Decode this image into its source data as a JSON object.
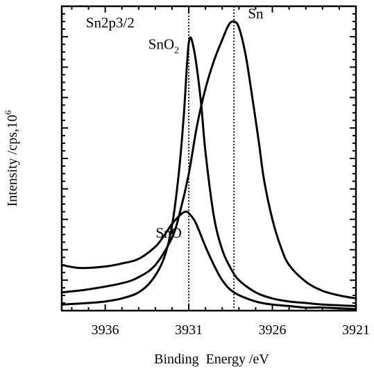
{
  "chart_data": {
    "type": "line",
    "title": "",
    "xlabel": "Binding  Energy /eV",
    "ylabel": "Intensity /cps,10",
    "ylabel_superscript": "6",
    "x_reversed": true,
    "xlim": [
      3938.6,
      3921
    ],
    "ylim": [
      0,
      100
    ],
    "x_ticks": [
      3936,
      3931,
      3926,
      3921
    ],
    "x_tick_labels": [
      "3936",
      "3931",
      "3926",
      "3921"
    ],
    "y_tick_labels_shown": false,
    "grid": false,
    "reference_lines_x": [
      3931.0,
      3928.3
    ],
    "annotations": [
      {
        "text": "Sn2p3/2",
        "x": 3935.7,
        "y": 93
      },
      {
        "text": "Sn",
        "x": 3927.0,
        "y": 96
      },
      {
        "text": "SnO",
        "sub": "2",
        "x": 3932.5,
        "y": 86
      },
      {
        "text": "SnO",
        "x": 3932.2,
        "y": 24
      }
    ],
    "series": [
      {
        "name": "Sn",
        "x": [
          3938.6,
          3937,
          3935,
          3934,
          3933,
          3932,
          3931.5,
          3931,
          3930.5,
          3930,
          3929.5,
          3929,
          3928.6,
          3928.3,
          3928,
          3927.6,
          3927.2,
          3926.8,
          3926.5,
          3926,
          3925.5,
          3925,
          3924,
          3923,
          3922,
          3921
        ],
        "y": [
          6,
          7,
          9,
          11,
          15,
          24,
          33,
          45,
          61,
          73,
          82,
          89,
          94,
          95,
          93,
          84,
          70,
          55,
          43,
          30,
          21,
          15,
          9.5,
          6.5,
          5,
          4
        ]
      },
      {
        "name": "SnO2",
        "x": [
          3938.6,
          3937,
          3936,
          3935,
          3934,
          3933.2,
          3932.5,
          3932,
          3931.6,
          3931.3,
          3931,
          3930.7,
          3930.3,
          3930,
          3929.5,
          3929,
          3928.5,
          3928,
          3927,
          3926,
          3925,
          3924,
          3923,
          3921
        ],
        "y": [
          2,
          2.5,
          3,
          4,
          6,
          10,
          17,
          28,
          45,
          64,
          88,
          86,
          70,
          52,
          31,
          20,
          14,
          10,
          6,
          4,
          3,
          2.5,
          2,
          1.5
        ]
      },
      {
        "name": "SnO",
        "x": [
          3938.6,
          3937.5,
          3936,
          3935,
          3934,
          3933,
          3932.5,
          3932,
          3931.5,
          3931.2,
          3931,
          3930.6,
          3930,
          3929.5,
          3929,
          3928.3,
          3927,
          3926,
          3925,
          3924,
          3923,
          3921
        ],
        "y": [
          15,
          14,
          14.5,
          15.5,
          17,
          21,
          24.5,
          28.5,
          31.5,
          32.5,
          32,
          29,
          21,
          15,
          10,
          6,
          3,
          2,
          1.5,
          1,
          1,
          0.5
        ]
      }
    ]
  }
}
